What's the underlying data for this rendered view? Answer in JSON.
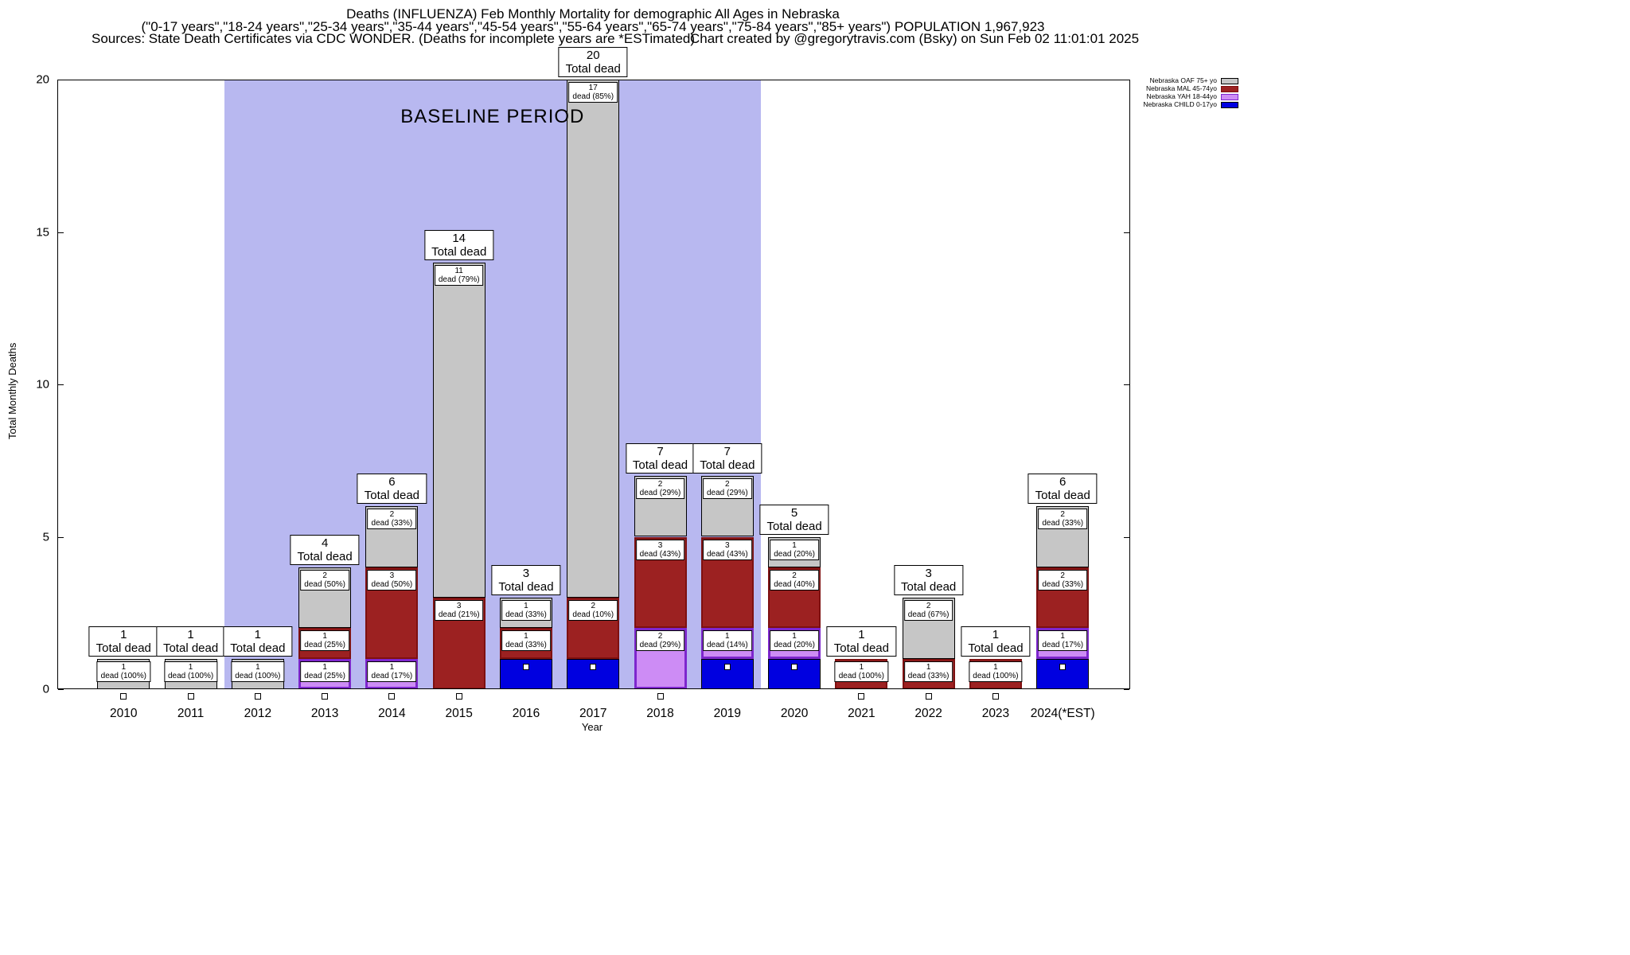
{
  "header": {
    "title_line1": "Deaths (INFLUENZA) Feb Monthly Mortality for demographic All Ages in Nebraska",
    "title_line2": "(\"0-17 years\",\"18-24 years\",\"25-34 years\",\"35-44 years\",\"45-54 years\",\"55-64 years\",\"65-74 years\",\"75-84 years\",\"85+ years\") POPULATION 1,967,923",
    "title_line3_left": "Sources: State Death Certificates via CDC WONDER. (Deaths for incomplete years are *ESTimated)",
    "title_line3_right": "Chart created by @gregorytravis.com (Bsky) on Sun Feb 02 11:01:01 2025"
  },
  "baseline": {
    "label": "BASELINE PERIOD",
    "color": "#b8b8f0",
    "start_category": "2012",
    "end_category": "2019"
  },
  "chart_data": {
    "type": "bar",
    "stacked": true,
    "title": "Deaths (INFLUENZA) Feb Monthly Mortality for demographic All Ages in Nebraska",
    "xlabel": "Year",
    "ylabel": "Total Monthly Deaths",
    "ylim": [
      0,
      20
    ],
    "yticks": [
      0,
      5,
      10,
      15,
      20
    ],
    "grid": false,
    "legend_position": "top-right-outside",
    "categories": [
      "2010",
      "2011",
      "2012",
      "2013",
      "2014",
      "2015",
      "2016",
      "2017",
      "2018",
      "2019",
      "2020",
      "2021",
      "2022",
      "2023",
      "2024(*EST)"
    ],
    "series": [
      {
        "name": "Nebraska CHILD 0-17yo",
        "fill": "#0000e0",
        "border": "#000000",
        "border_width": 1,
        "values": [
          0,
          0,
          0,
          0,
          0,
          0,
          1,
          1,
          0,
          1,
          1,
          0,
          0,
          0,
          1
        ],
        "labels": [
          null,
          null,
          null,
          null,
          null,
          null,
          null,
          null,
          null,
          null,
          null,
          null,
          null,
          null,
          null
        ]
      },
      {
        "name": "Nebraska YAH 18-44yo",
        "fill": "#cd8cf5",
        "border": "#7d26cd",
        "border_width": 3,
        "values": [
          0,
          0,
          0,
          1,
          1,
          0,
          0,
          0,
          2,
          1,
          1,
          0,
          0,
          0,
          1
        ],
        "labels": [
          null,
          null,
          null,
          "1 dead (25%)",
          "1 dead (17%)",
          null,
          null,
          null,
          "2 dead (29%)",
          "1 dead (14%)",
          "1 dead (20%)",
          null,
          null,
          null,
          "1 dead (17%)"
        ]
      },
      {
        "name": "Nebraska MAL 45-74yo",
        "fill": "#9c2121",
        "border": "#7e1010",
        "border_width": 2,
        "values": [
          0,
          0,
          0,
          1,
          3,
          3,
          1,
          2,
          3,
          3,
          2,
          1,
          1,
          1,
          2
        ],
        "labels": [
          null,
          null,
          null,
          "1 dead (25%)",
          "3 dead (50%)",
          "3 dead (21%)",
          "1 dead (33%)",
          "2 dead (10%)",
          "3 dead (43%)",
          "3 dead (43%)",
          "2 dead (40%)",
          "1 dead (100%)",
          "1 dead (33%)",
          "1 dead (100%)",
          "2 dead (33%)"
        ]
      },
      {
        "name": "Nebraska OAF 75+ yo",
        "fill": "#c6c6c6",
        "border": "#000000",
        "border_width": 1,
        "values": [
          1,
          1,
          1,
          2,
          2,
          11,
          1,
          17,
          2,
          2,
          1,
          0,
          2,
          0,
          2
        ],
        "labels": [
          "1 dead (100%)",
          "1 dead (100%)",
          "1 dead (100%)",
          "2 dead (50%)",
          "2 dead (33%)",
          "11 dead (79%)",
          "1 dead (33%)",
          "17 dead (85%)",
          "2 dead (29%)",
          "2 dead (29%)",
          "1 dead (20%)",
          null,
          "2 dead (67%)",
          null,
          "2 dead (33%)"
        ]
      }
    ],
    "totals": [
      1,
      1,
      1,
      4,
      6,
      14,
      3,
      20,
      7,
      7,
      5,
      1,
      3,
      1,
      6
    ],
    "total_label_text": "Total dead",
    "legend": [
      "Nebraska OAF 75+ yo",
      "Nebraska MAL 45-74yo",
      "Nebraska YAH 18-44yo",
      "Nebraska CHILD 0-17yo"
    ],
    "marker_color": "#ffffff"
  }
}
